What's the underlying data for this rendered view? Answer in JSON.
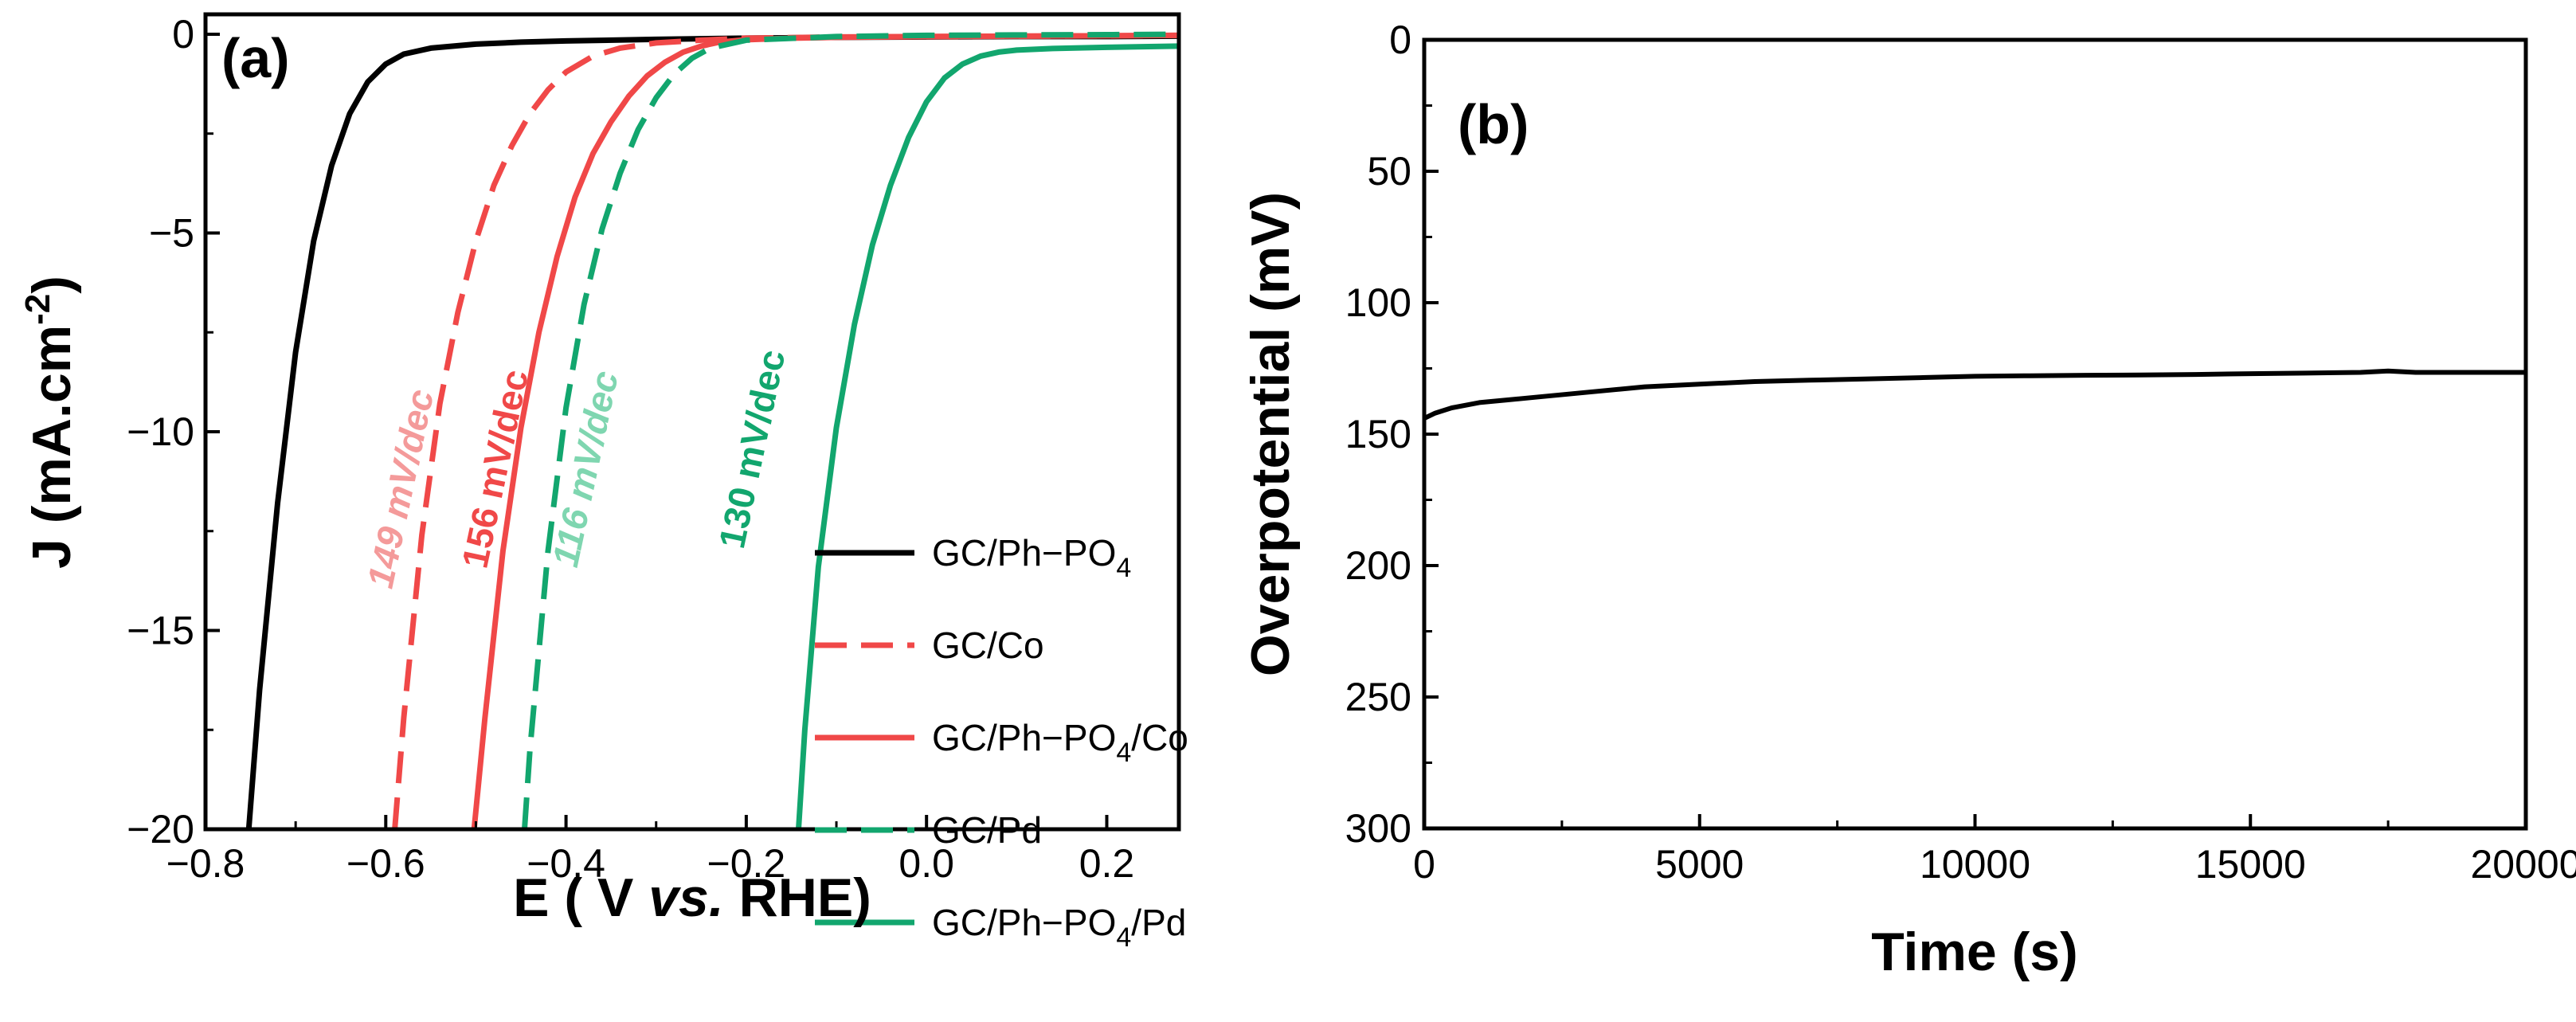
{
  "chart_data": [
    {
      "panel": "(a)",
      "type": "line",
      "xlabel": "E ( V vs. RHE)",
      "xlabel_parts": [
        "E ( V ",
        "vs.",
        " RHE)"
      ],
      "ylabel": "J (mA.cm-2)",
      "ylabel_main": "J (mA.cm",
      "ylabel_sup": "-2",
      "ylabel_tail": ")",
      "xlim": [
        -0.8,
        0.28
      ],
      "ylim": [
        -20,
        0.5
      ],
      "xticks": [
        -0.8,
        -0.6,
        -0.4,
        -0.2,
        0.0,
        0.2
      ],
      "xtick_labels": [
        "−0.8",
        "−0.6",
        "−0.4",
        "−0.2",
        "0.0",
        "0.2"
      ],
      "yticks": [
        0,
        -5,
        -10,
        -15,
        -20
      ],
      "ytick_labels": [
        "0",
        "−5",
        "−10",
        "−15",
        "−20"
      ],
      "series": [
        {
          "name": "GC/Ph−PO4",
          "label_main": "GC/Ph−PO",
          "label_sub": "4",
          "label_tail": "",
          "color": "#000000",
          "dashed": false,
          "x": [
            -0.752,
            -0.74,
            -0.72,
            -0.7,
            -0.68,
            -0.66,
            -0.64,
            -0.62,
            -0.6,
            -0.58,
            -0.55,
            -0.5,
            -0.45,
            -0.4,
            -0.3,
            -0.2,
            -0.1,
            0.0,
            0.1,
            0.2,
            0.28
          ],
          "y": [
            -20,
            -16.5,
            -11.8,
            -8.0,
            -5.2,
            -3.3,
            -2.0,
            -1.2,
            -0.75,
            -0.5,
            -0.35,
            -0.25,
            -0.2,
            -0.17,
            -0.13,
            -0.1,
            -0.08,
            -0.07,
            -0.06,
            -0.06,
            -0.05
          ]
        },
        {
          "name": "GC/Co",
          "label_main": "GC/Co",
          "label_sub": "",
          "label_tail": "",
          "color": "#f04848",
          "dashed": true,
          "x": [
            -0.59,
            -0.58,
            -0.56,
            -0.54,
            -0.52,
            -0.5,
            -0.48,
            -0.46,
            -0.44,
            -0.42,
            -0.4,
            -0.37,
            -0.34,
            -0.3,
            -0.25,
            -0.2,
            -0.1,
            0.0,
            0.1,
            0.2,
            0.28
          ],
          "y": [
            -20,
            -17.2,
            -12.6,
            -9.3,
            -7.0,
            -5.2,
            -3.8,
            -2.8,
            -2.0,
            -1.4,
            -0.95,
            -0.55,
            -0.35,
            -0.22,
            -0.15,
            -0.1,
            -0.07,
            -0.06,
            -0.05,
            -0.04,
            -0.03
          ]
        },
        {
          "name": "GC/Ph−PO4/Co",
          "label_main": "GC/Ph−PO",
          "label_sub": "4",
          "label_tail": "/Co",
          "color": "#f04848",
          "dashed": false,
          "x": [
            -0.502,
            -0.49,
            -0.47,
            -0.45,
            -0.43,
            -0.41,
            -0.39,
            -0.37,
            -0.35,
            -0.33,
            -0.31,
            -0.29,
            -0.27,
            -0.25,
            -0.23,
            -0.2,
            -0.15,
            -0.1,
            0.0,
            0.1,
            0.2,
            0.28
          ],
          "y": [
            -20,
            -17.2,
            -13.0,
            -9.9,
            -7.5,
            -5.6,
            -4.1,
            -3.0,
            -2.2,
            -1.55,
            -1.05,
            -0.7,
            -0.45,
            -0.3,
            -0.2,
            -0.14,
            -0.1,
            -0.08,
            -0.06,
            -0.05,
            -0.04,
            -0.03
          ]
        },
        {
          "name": "GC/Pd",
          "label_main": "GC/Pd",
          "label_sub": "",
          "label_tail": "",
          "color": "#12a66e",
          "dashed": true,
          "x": [
            -0.446,
            -0.44,
            -0.42,
            -0.4,
            -0.38,
            -0.36,
            -0.34,
            -0.32,
            -0.3,
            -0.28,
            -0.26,
            -0.24,
            -0.2,
            -0.1,
            0.0,
            0.1,
            0.2,
            0.28
          ],
          "y": [
            -20,
            -18.0,
            -13.0,
            -9.4,
            -6.8,
            -4.9,
            -3.5,
            -2.4,
            -1.6,
            -1.0,
            -0.6,
            -0.35,
            -0.15,
            -0.06,
            -0.03,
            -0.02,
            -0.01,
            0.0
          ]
        },
        {
          "name": "GC/Ph−PO4/Pd",
          "label_main": "GC/Ph−PO",
          "label_sub": "4",
          "label_tail": "/Pd",
          "color": "#12a66e",
          "dashed": false,
          "x": [
            -0.142,
            -0.135,
            -0.12,
            -0.1,
            -0.08,
            -0.06,
            -0.04,
            -0.02,
            0.0,
            0.02,
            0.04,
            0.06,
            0.08,
            0.1,
            0.14,
            0.2,
            0.28
          ],
          "y": [
            -20,
            -17.5,
            -13.4,
            -9.9,
            -7.3,
            -5.3,
            -3.8,
            -2.6,
            -1.7,
            -1.1,
            -0.75,
            -0.55,
            -0.45,
            -0.4,
            -0.36,
            -0.33,
            -0.3
          ]
        }
      ],
      "annotations": [
        {
          "text": "149 mV/dec",
          "x": -0.57,
          "y": -11.5,
          "color": "#f49a9a",
          "italic": true
        },
        {
          "text": "156 mV/dec",
          "x": -0.465,
          "y": -11.0,
          "color": "#f04848",
          "italic": false
        },
        {
          "text": "116 mV/dec",
          "x": -0.365,
          "y": -11.0,
          "color": "#7fd6b0",
          "italic": true
        },
        {
          "text": "130 mV/dec",
          "x": -0.18,
          "y": -10.5,
          "color": "#12a66e",
          "italic": false
        }
      ],
      "legend_position": "bottom-right"
    },
    {
      "panel": "(b)",
      "type": "line",
      "xlabel": "Time (s)",
      "ylabel": "Overpotential (mV)",
      "xlim": [
        0,
        20000
      ],
      "ylim": [
        300,
        0
      ],
      "y_inverted": true,
      "xticks": [
        0,
        5000,
        10000,
        15000,
        20000
      ],
      "xtick_labels": [
        "0",
        "5000",
        "10000",
        "15000",
        "20000"
      ],
      "yticks": [
        0,
        50,
        100,
        150,
        200,
        250,
        300
      ],
      "ytick_labels": [
        "0",
        "50",
        "100",
        "150",
        "200",
        "250",
        "300"
      ],
      "series": [
        {
          "name": "overpotential",
          "color": "#000000",
          "x": [
            0,
            200,
            500,
            1000,
            1500,
            2000,
            3000,
            4000,
            5000,
            6000,
            7000,
            8000,
            9000,
            10000,
            11000,
            12000,
            13000,
            14000,
            15000,
            16000,
            17000,
            17500,
            18000,
            19000,
            20000
          ],
          "y": [
            144,
            142,
            140,
            138,
            137,
            136,
            134,
            132,
            131,
            130,
            129.5,
            129,
            128.5,
            128,
            127.8,
            127.6,
            127.5,
            127.3,
            127,
            126.8,
            126.5,
            126,
            126.5,
            126.5,
            126.5
          ]
        }
      ]
    }
  ]
}
